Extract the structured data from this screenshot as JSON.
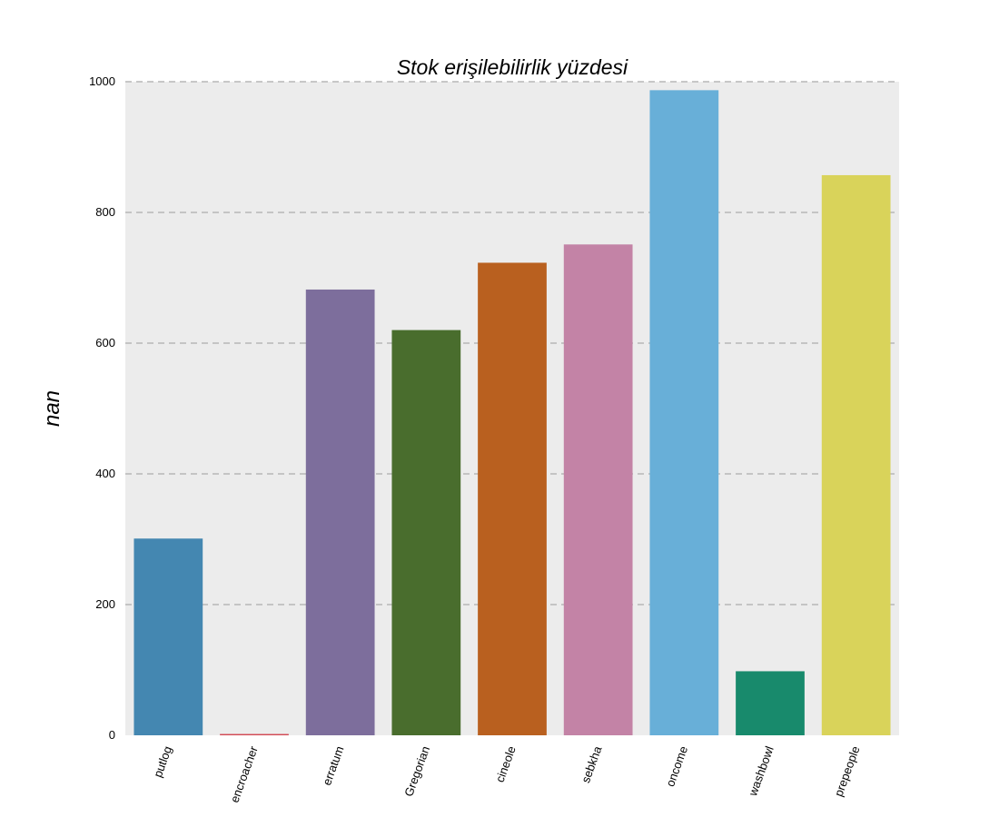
{
  "chart_data": {
    "type": "bar",
    "title": "Stok erişilebilirlik yüzdesi",
    "xlabel": "",
    "ylabel": "nan",
    "categories": [
      "putlog",
      "encroacher",
      "erratum",
      "Gregorian",
      "cineole",
      "sebkha",
      "oncome",
      "washbowl",
      "prepeople"
    ],
    "values": [
      301,
      2,
      682,
      620,
      723,
      751,
      987,
      98,
      857
    ],
    "colors": [
      "#4487b1",
      "#d24a54",
      "#7d6e9c",
      "#496d2d",
      "#b9601f",
      "#c383a6",
      "#68afd8",
      "#188a6c",
      "#d9d35a"
    ],
    "ylim": [
      0,
      1000
    ],
    "yticks": [
      0,
      200,
      400,
      600,
      800,
      1000
    ],
    "grid": "horizontal dashed"
  }
}
